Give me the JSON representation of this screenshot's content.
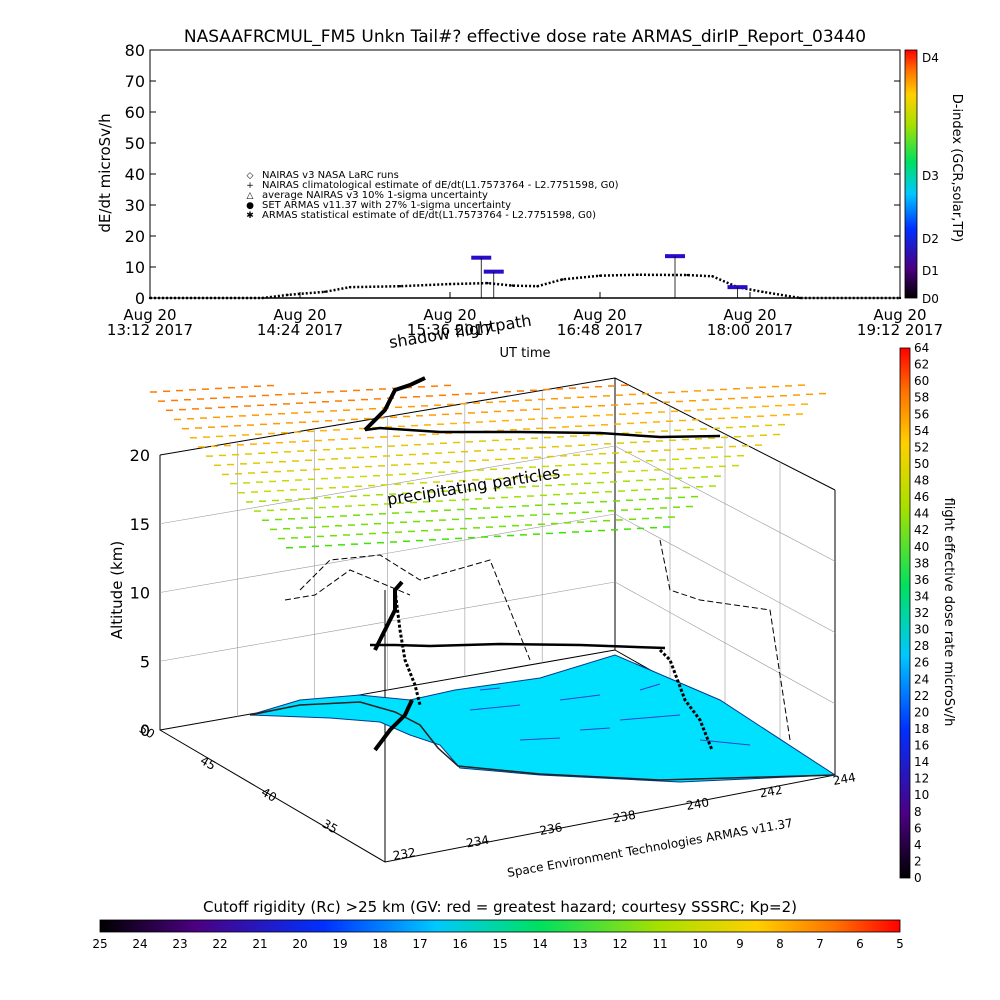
{
  "title": "NASAAFRCMUL_FM5 Unkn Tail#? effective dose rate ARMAS_dirIP_Report_03440",
  "top_chart": {
    "ylabel": "dE/dt microSv/h",
    "xlabel": "UT time",
    "yticks": [
      0,
      10,
      20,
      30,
      40,
      50,
      60,
      70,
      80
    ],
    "xticks": [
      {
        "line1": "Aug 20",
        "line2": "13:12 2017"
      },
      {
        "line1": "Aug 20",
        "line2": "14:24 2017"
      },
      {
        "line1": "Aug 20",
        "line2": "15:36 2017"
      },
      {
        "line1": "Aug 20",
        "line2": "16:48 2017"
      },
      {
        "line1": "Aug 20",
        "line2": "18:00 2017"
      },
      {
        "line1": "Aug 20",
        "line2": "19:12 2017"
      }
    ],
    "legend": [
      {
        "symbol": "◇",
        "text": "NAIRAS v3 NASA LaRC runs"
      },
      {
        "symbol": "+",
        "text": "NAIRAS climatological estimate of dE/dt(L1.7573764 - L2.7751598, G0)"
      },
      {
        "symbol": "△",
        "text": "average NAIRAS v3 10% 1-sigma uncertainty"
      },
      {
        "symbol": "●",
        "text": "SET ARMAS v11.37 with 27% 1-sigma uncertainty"
      },
      {
        "symbol": "✱",
        "text": "ARMAS statistical estimate of dE/dt(L1.7573764 - L2.7751598, G0)"
      }
    ],
    "right_colorbar": {
      "label": "D-index (GCR,solar,TP)",
      "ticks": [
        "D0",
        "D1",
        "D2",
        "D3",
        "D4"
      ]
    }
  },
  "chart_data": [
    {
      "type": "line",
      "title": "NASAAFRCMUL_FM5 Unkn Tail#? effective dose rate ARMAS_dirIP_Report_03440",
      "xlabel": "UT time",
      "ylabel": "dE/dt microSv/h",
      "ylim": [
        0,
        80
      ],
      "x_unit": "UT hours",
      "xlim": [
        13.2,
        19.2
      ],
      "series": [
        {
          "name": "NAIRAS climatological estimate of dE/dt(L1.7573764 - L2.7751598, G0)",
          "x": [
            13.2,
            14.1,
            14.3,
            14.6,
            14.8,
            15.2,
            15.6,
            15.9,
            16.1,
            16.3,
            16.5,
            16.8,
            17.1,
            17.5,
            17.7,
            17.9,
            18.1,
            18.4,
            19.2
          ],
          "y": [
            0,
            0,
            1.0,
            2.0,
            3.5,
            3.8,
            4.5,
            4.8,
            4.0,
            3.8,
            6.0,
            7.2,
            7.5,
            7.4,
            7.0,
            3.5,
            2.0,
            0,
            0
          ]
        },
        {
          "name": "SET ARMAS v11.37 with 27% 1-sigma uncertainty",
          "x": [
            15.85,
            15.95,
            17.4,
            17.9
          ],
          "y": [
            13,
            8.5,
            13.5,
            3.5
          ]
        }
      ],
      "grid": false
    },
    {
      "type": "scatter",
      "title": "",
      "xlabel": "",
      "ylabel": "Altitude (km)",
      "z_ticks": [
        0,
        5,
        10,
        15,
        20
      ],
      "x_ticks": [
        232,
        234,
        236,
        238,
        240,
        242,
        244
      ],
      "y_ticks": [
        35,
        40,
        45,
        50
      ],
      "annotations": [
        "shadow flightpath",
        "precipitating particles",
        "Space Environment Technologies ARMAS v11.37"
      ],
      "colorbar": {
        "label": "flight effective dose rate microSv/h",
        "range": [
          0,
          64
        ],
        "ticks": [
          0,
          2,
          4,
          6,
          8,
          10,
          12,
          14,
          16,
          18,
          20,
          22,
          24,
          26,
          28,
          30,
          32,
          34,
          36,
          38,
          40,
          42,
          44,
          46,
          48,
          50,
          52,
          54,
          56,
          58,
          60,
          62,
          64
        ]
      }
    }
  ],
  "bottom_colorbar": {
    "label": "Cutoff rigidity (Rc) >25 km (GV: red = greatest hazard; courtesy SSSRC; Kp=2)",
    "ticks": [
      25,
      24,
      23,
      22,
      21,
      20,
      19,
      18,
      17,
      16,
      15,
      14,
      13,
      12,
      11,
      10,
      9,
      8,
      7,
      6,
      5
    ]
  },
  "colors": {
    "surface": "#00e0ff",
    "track": "#000000",
    "armas_marker": "#2a0cc8"
  }
}
